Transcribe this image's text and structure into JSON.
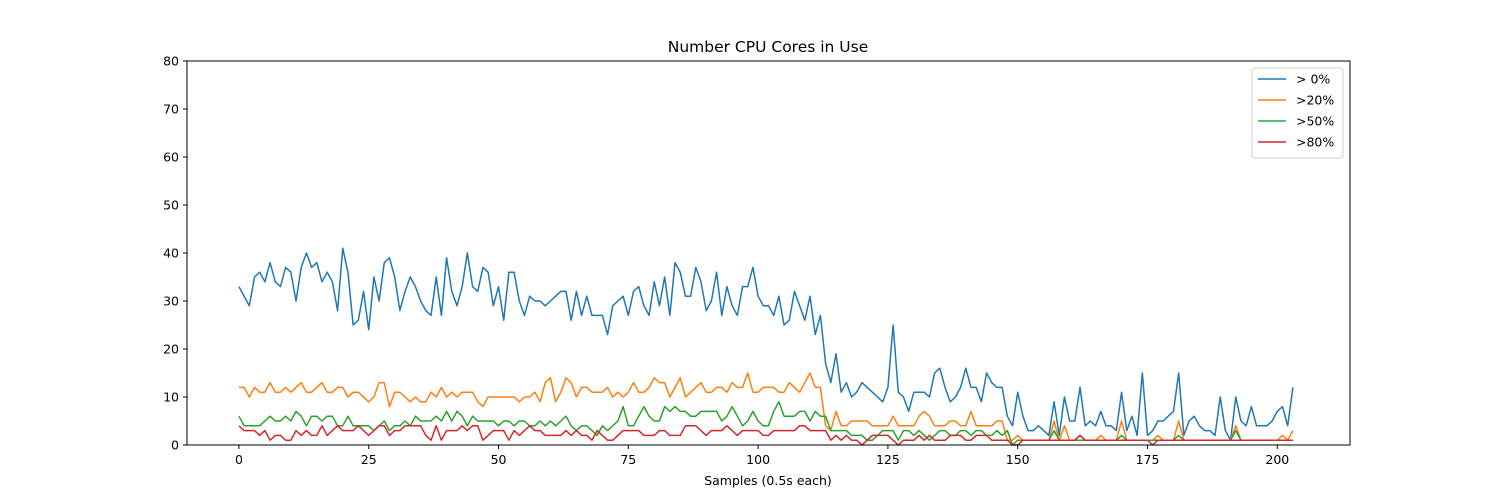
{
  "chart_data": {
    "type": "line",
    "title": "Number CPU Cores in Use",
    "xlabel": "Samples (0.5s each)",
    "ylabel": "",
    "xlim": [
      -10,
      214
    ],
    "ylim": [
      0,
      80
    ],
    "xticks": [
      0,
      25,
      50,
      75,
      100,
      125,
      150,
      175,
      200
    ],
    "yticks": [
      0,
      10,
      20,
      30,
      40,
      50,
      60,
      70,
      80
    ],
    "grid": false,
    "legend_position": "top-right",
    "series": [
      {
        "name": "> 0%",
        "color": "#1f77b4",
        "values": [
          33,
          31,
          29,
          35,
          36,
          34,
          38,
          34,
          33,
          37,
          36,
          30,
          37,
          40,
          37,
          38,
          34,
          36,
          34,
          28,
          41,
          36,
          25,
          26,
          32,
          24,
          35,
          30,
          38,
          39,
          35,
          28,
          32,
          35,
          33,
          30,
          28,
          27,
          35,
          27,
          39,
          32,
          29,
          33,
          40,
          33,
          32,
          37,
          36,
          29,
          33,
          26,
          36,
          36,
          30,
          27,
          31,
          30,
          30,
          29,
          30,
          31,
          32,
          32,
          26,
          32,
          27,
          31,
          27,
          27,
          27,
          23,
          29,
          30,
          31,
          27,
          32,
          33,
          29,
          27,
          34,
          29,
          35,
          27,
          38,
          36,
          31,
          31,
          37,
          34,
          28,
          30,
          36,
          27,
          33,
          29,
          27,
          33,
          33,
          37,
          31,
          29,
          29,
          27,
          31,
          25,
          26,
          32,
          29,
          26,
          31,
          23,
          27,
          17,
          13,
          19,
          11,
          13,
          10,
          11,
          13,
          12,
          11,
          10,
          9,
          12,
          25,
          11,
          10,
          7,
          11,
          11,
          11,
          10,
          15,
          16,
          12,
          9,
          10,
          12,
          16,
          12,
          12,
          9,
          15,
          13,
          12,
          12,
          6,
          4,
          11,
          6,
          3,
          3,
          4,
          3,
          2,
          9,
          2,
          10,
          5,
          5,
          12,
          4,
          5,
          4,
          7,
          4,
          4,
          3,
          11,
          3,
          6,
          2,
          15,
          2,
          3,
          5,
          5,
          6,
          7,
          15,
          2,
          5,
          6,
          4,
          3,
          3,
          2,
          10,
          3,
          1,
          10,
          5,
          4,
          8,
          4,
          4,
          4,
          5,
          7,
          8,
          4,
          12
        ]
      },
      {
        "name": ">20%",
        "color": "#ff7f0e",
        "values": [
          12,
          12,
          10,
          12,
          11,
          11,
          13,
          11,
          11,
          12,
          11,
          12,
          13,
          11,
          11,
          12,
          13,
          11,
          11,
          12,
          12,
          10,
          11,
          11,
          10,
          9,
          10,
          13,
          13,
          8,
          11,
          11,
          10,
          9,
          10,
          9,
          9,
          11,
          10,
          12,
          10,
          11,
          10,
          11,
          11,
          11,
          9,
          8,
          10,
          10,
          10,
          10,
          10,
          10,
          9,
          10,
          10,
          11,
          9,
          13,
          14,
          9,
          11,
          14,
          13,
          10,
          12,
          12,
          11,
          11,
          11,
          12,
          10,
          11,
          10,
          11,
          13,
          11,
          11,
          12,
          14,
          13,
          13,
          10,
          12,
          14,
          10,
          11,
          12,
          13,
          11,
          11,
          12,
          12,
          11,
          13,
          12,
          12,
          15,
          11,
          11,
          12,
          12,
          12,
          11,
          11,
          13,
          12,
          11,
          13,
          15,
          12,
          12,
          4,
          3,
          7,
          4,
          4,
          5,
          5,
          5,
          5,
          4,
          4,
          4,
          4,
          6,
          4,
          4,
          4,
          4,
          6,
          7,
          6,
          4,
          4,
          4,
          5,
          5,
          4,
          4,
          7,
          4,
          4,
          4,
          4,
          5,
          5,
          1,
          1,
          2,
          1,
          1,
          1,
          1,
          1,
          1,
          5,
          1,
          4,
          1,
          1,
          2,
          1,
          1,
          1,
          2,
          1,
          1,
          1,
          5,
          1,
          1,
          1,
          1,
          1,
          1,
          2,
          1,
          1,
          1,
          5,
          1,
          1,
          1,
          1,
          1,
          1,
          1,
          1,
          1,
          1,
          4,
          1,
          1,
          1,
          1,
          1,
          1,
          1,
          1,
          2,
          1,
          3
        ]
      },
      {
        "name": ">50%",
        "color": "#2ca02c",
        "values": [
          6,
          4,
          4,
          4,
          4,
          5,
          6,
          5,
          5,
          6,
          5,
          7,
          6,
          4,
          6,
          6,
          5,
          6,
          6,
          4,
          4,
          6,
          4,
          4,
          4,
          4,
          3,
          4,
          5,
          3,
          4,
          4,
          5,
          4,
          6,
          5,
          5,
          5,
          6,
          5,
          7,
          5,
          7,
          6,
          4,
          6,
          5,
          5,
          5,
          5,
          4,
          5,
          5,
          4,
          5,
          5,
          4,
          4,
          5,
          4,
          5,
          4,
          5,
          6,
          4,
          3,
          4,
          4,
          3,
          2,
          4,
          3,
          4,
          5,
          8,
          4,
          4,
          6,
          8,
          6,
          5,
          5,
          8,
          7,
          8,
          7,
          7,
          6,
          6,
          7,
          7,
          7,
          7,
          5,
          6,
          8,
          6,
          4,
          5,
          7,
          5,
          4,
          4,
          7,
          9,
          6,
          6,
          6,
          7,
          7,
          5,
          7,
          6,
          6,
          3,
          3,
          3,
          3,
          2,
          2,
          2,
          1,
          1,
          2,
          3,
          3,
          3,
          1,
          3,
          3,
          2,
          3,
          2,
          1,
          2,
          3,
          3,
          2,
          2,
          3,
          3,
          2,
          3,
          3,
          2,
          2,
          3,
          2,
          3,
          0,
          1,
          1,
          1,
          1,
          1,
          1,
          1,
          3,
          1,
          1,
          1,
          1,
          1,
          1,
          1,
          1,
          1,
          1,
          1,
          1,
          2,
          1,
          1,
          1,
          1,
          1,
          1,
          1,
          1,
          1,
          1,
          2,
          1,
          1,
          1,
          1,
          1,
          1,
          1,
          1,
          1,
          1,
          3,
          1,
          1,
          1,
          1,
          1,
          1,
          1,
          1,
          1,
          1,
          1
        ]
      },
      {
        "name": ">80%",
        "color": "#d62728",
        "values": [
          4,
          3,
          3,
          3,
          2,
          3,
          1,
          2,
          2,
          1,
          1,
          3,
          2,
          3,
          2,
          2,
          4,
          2,
          3,
          4,
          3,
          3,
          3,
          4,
          3,
          2,
          3,
          4,
          4,
          2,
          3,
          3,
          4,
          4,
          4,
          4,
          2,
          1,
          4,
          1,
          3,
          3,
          3,
          4,
          3,
          4,
          4,
          1,
          2,
          3,
          3,
          3,
          1,
          3,
          2,
          3,
          4,
          3,
          3,
          2,
          2,
          2,
          2,
          3,
          2,
          3,
          2,
          2,
          1,
          3,
          2,
          1,
          1,
          2,
          3,
          3,
          3,
          3,
          2,
          2,
          2,
          3,
          3,
          2,
          2,
          2,
          4,
          4,
          4,
          3,
          2,
          3,
          3,
          3,
          4,
          3,
          2,
          3,
          3,
          3,
          3,
          2,
          2,
          3,
          3,
          3,
          3,
          3,
          4,
          4,
          3,
          3,
          3,
          3,
          1,
          2,
          1,
          2,
          1,
          1,
          0,
          1,
          2,
          2,
          2,
          2,
          1,
          0,
          1,
          1,
          1,
          2,
          1,
          2,
          1,
          1,
          1,
          2,
          2,
          2,
          1,
          1,
          2,
          2,
          2,
          1,
          1,
          1,
          1,
          0,
          0,
          1,
          1,
          1,
          1,
          1,
          1,
          1,
          1,
          1,
          1,
          1,
          2,
          1,
          1,
          1,
          1,
          1,
          1,
          1,
          1,
          1,
          1,
          1,
          1,
          1,
          0,
          1,
          1,
          1,
          1,
          1,
          1,
          1,
          1,
          1,
          1,
          1,
          1,
          1,
          1,
          1,
          1,
          1,
          1,
          1,
          1,
          1,
          1,
          1,
          1,
          1,
          1,
          1
        ]
      }
    ]
  }
}
